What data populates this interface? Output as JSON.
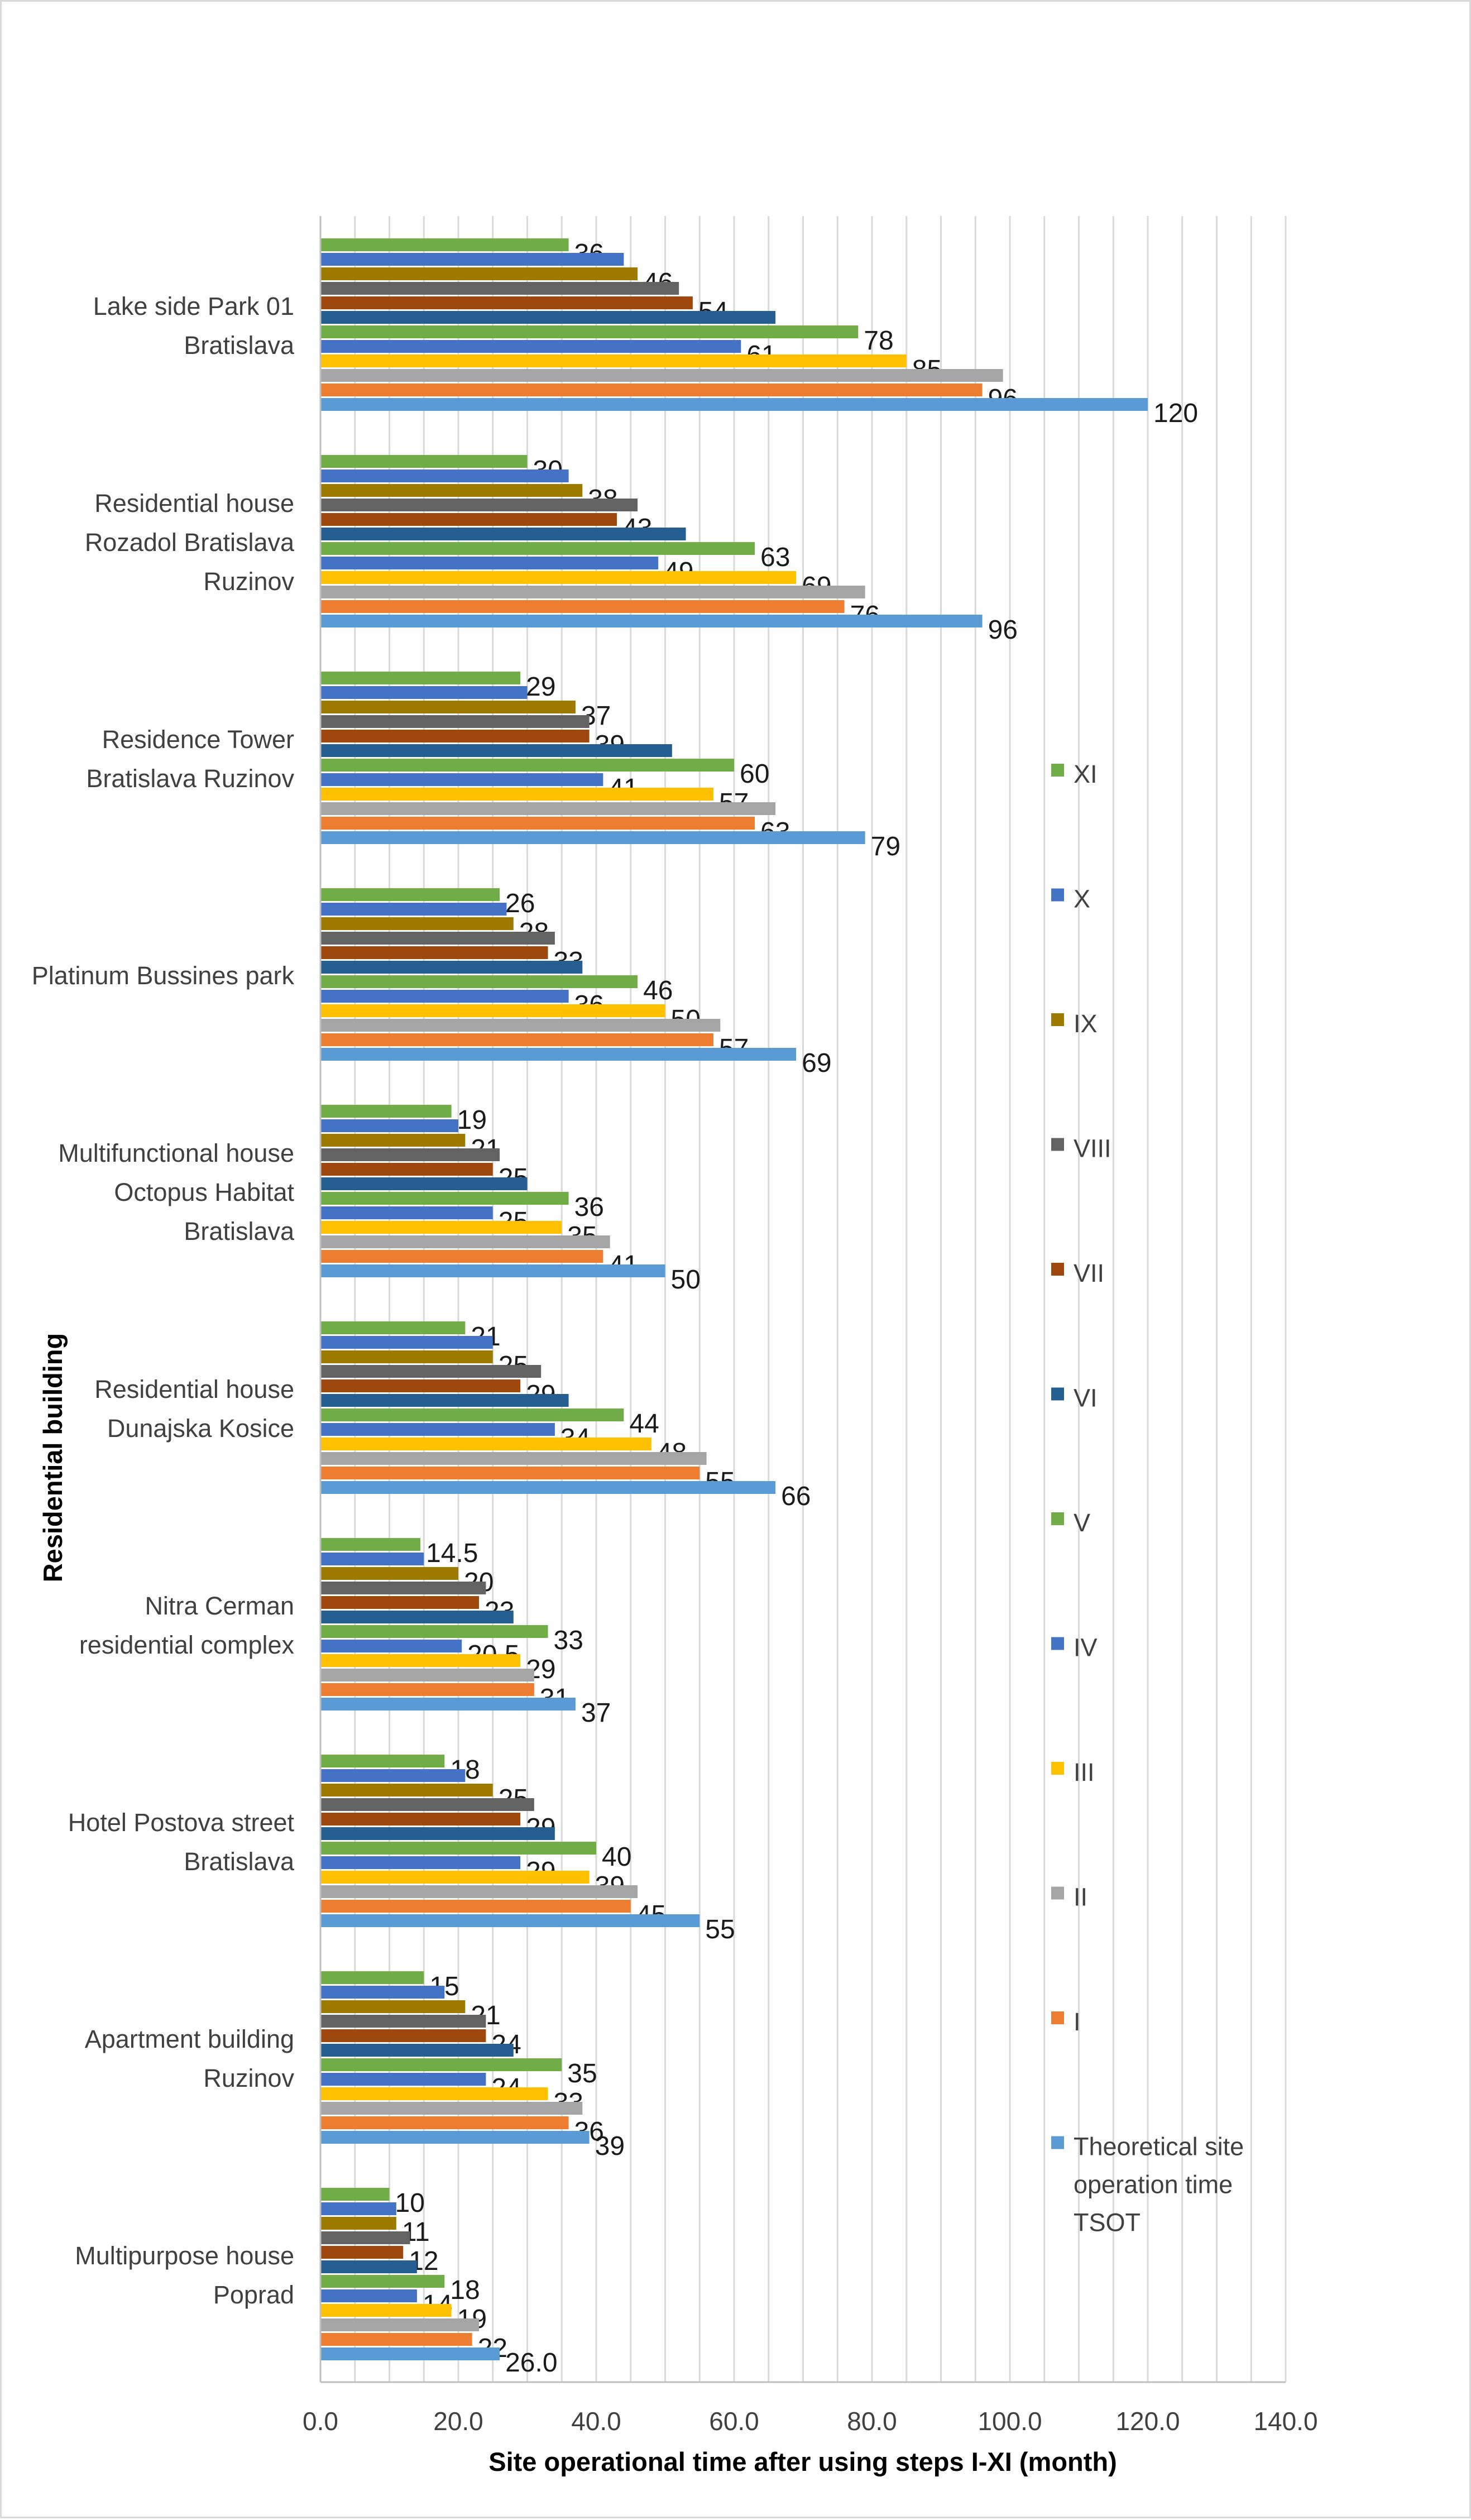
{
  "chart_data": {
    "type": "bar",
    "orientation": "horizontal",
    "title": "",
    "xlabel": "Site operational  time  after using steps I-XI (month)",
    "ylabel": "Residential building",
    "xlim": [
      0,
      140
    ],
    "xticks": [
      "0.0",
      "20.0",
      "40.0",
      "60.0",
      "80.0",
      "100.0",
      "120.0",
      "140.0"
    ],
    "grid": "vertical",
    "legend_position": "right",
    "categories": [
      "Lake side Park 01\nBratislava",
      "Residential house\nRozadol Bratislava\nRuzinov",
      "Residence Tower\nBratislava Ruzinov",
      "Platinum Bussines park",
      "Multifunctional house\nOctopus Habitat\nBratislava",
      "Residential house\nDunajska Kosice",
      "Nitra Cerman\nresidential complex",
      "Hotel Postova street\nBratislava",
      "Apartment building\nRuzinov",
      "Multipurpose house\nPoprad"
    ],
    "series": [
      {
        "name": "XI",
        "color": "#70ad47",
        "values": [
          36,
          30,
          29,
          26,
          19,
          21,
          14.5,
          18,
          15,
          10
        ],
        "labels": [
          "36",
          "30",
          "29",
          "26",
          "19",
          "21",
          "14.5",
          "18",
          "15",
          "10"
        ]
      },
      {
        "name": "X",
        "color": "#4472c4",
        "values": [
          44,
          36,
          30,
          27,
          20,
          25,
          15,
          21,
          18,
          11
        ],
        "labels": []
      },
      {
        "name": "IX",
        "color": "#9e7a00",
        "values": [
          46,
          38,
          37,
          28,
          21,
          25,
          20,
          25,
          21,
          11
        ],
        "labels": [
          "46",
          "38",
          "37",
          "28",
          "21",
          "25",
          "20",
          "25",
          "21",
          "11"
        ]
      },
      {
        "name": "VIII",
        "color": "#636363",
        "values": [
          52,
          46,
          39,
          34,
          26,
          32,
          24,
          31,
          24,
          13
        ],
        "labels": []
      },
      {
        "name": "VII",
        "color": "#9e480e",
        "values": [
          54,
          43,
          39,
          33,
          25,
          29,
          23,
          29,
          24,
          12
        ],
        "labels": [
          "54",
          "43",
          "39",
          "33",
          "25",
          "29",
          "23",
          "29",
          "24",
          "12"
        ]
      },
      {
        "name": "VI",
        "color": "#255e91",
        "values": [
          66,
          53,
          51,
          38,
          30,
          36,
          28,
          34,
          28,
          14
        ],
        "labels": []
      },
      {
        "name": "V",
        "color": "#70ad47",
        "values": [
          78,
          63,
          60,
          46,
          36,
          44,
          33,
          40,
          35,
          18
        ],
        "labels": [
          "78",
          "63",
          "60",
          "46",
          "36",
          "44",
          "33",
          "40",
          "35",
          "18"
        ]
      },
      {
        "name": "IV",
        "color": "#4472c4",
        "values": [
          61,
          49,
          41,
          36,
          25,
          34,
          20.5,
          29,
          24,
          14
        ],
        "labels": [
          "61",
          "49",
          "41",
          "36",
          "25",
          "34",
          "20.5",
          "29",
          "24",
          "14"
        ]
      },
      {
        "name": "III",
        "color": "#ffc000",
        "values": [
          85,
          69,
          57,
          50,
          35,
          48,
          29,
          39,
          33,
          19
        ],
        "labels": [
          "85",
          "69",
          "57",
          "50",
          "35",
          "48",
          "29",
          "39",
          "33",
          "19"
        ]
      },
      {
        "name": "II",
        "color": "#a5a5a5",
        "values": [
          99,
          79,
          66,
          58,
          42,
          56,
          31,
          46,
          38,
          23
        ],
        "labels": []
      },
      {
        "name": "I",
        "color": "#ed7d31",
        "values": [
          96,
          76,
          63,
          57,
          41,
          55,
          31,
          45,
          36,
          22
        ],
        "labels": [
          "96",
          "76",
          "63",
          "57",
          "41",
          "55",
          "31",
          "45",
          "36",
          "22"
        ]
      },
      {
        "name": "Theoretical site\noperation time\nTSOT",
        "color": "#5b9bd5",
        "values": [
          120,
          96,
          79,
          69,
          50,
          66,
          37,
          55,
          39,
          26
        ],
        "labels": [
          "120",
          "96",
          "79",
          "69",
          "50",
          "66",
          "37",
          "55",
          "39",
          "26.0"
        ]
      }
    ]
  }
}
